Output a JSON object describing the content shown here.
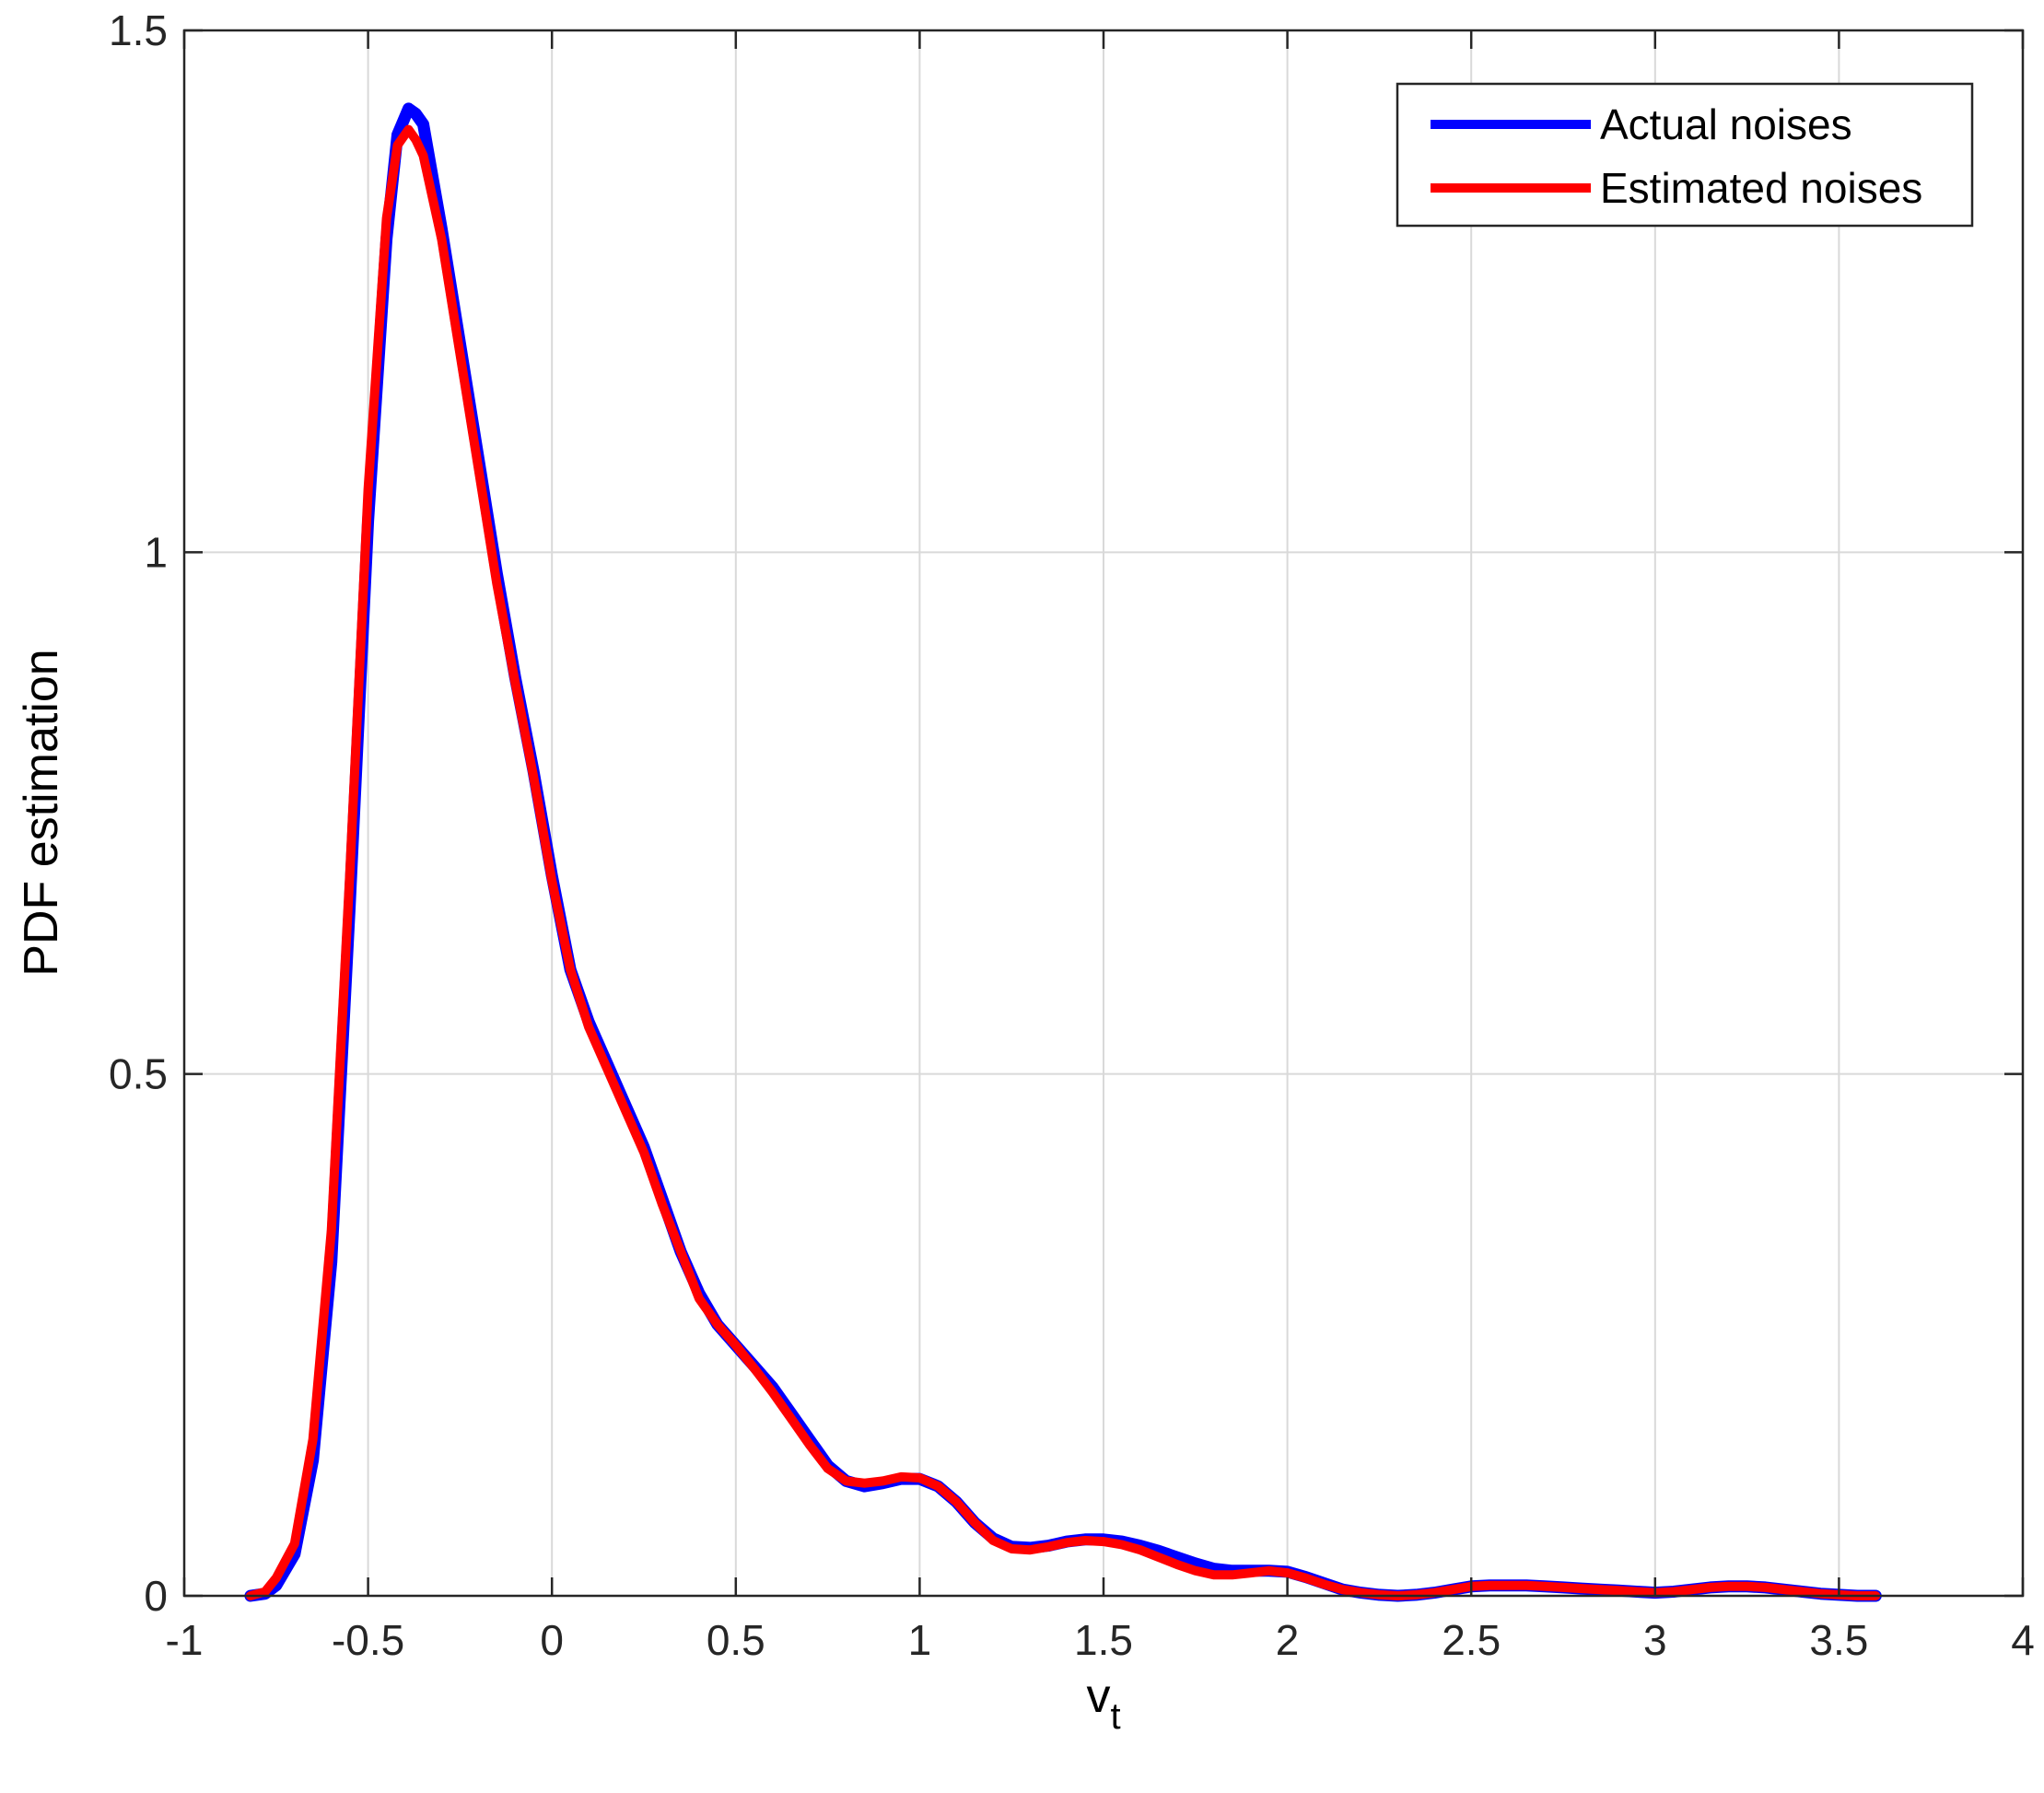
{
  "chart_data": {
    "type": "line",
    "title": "",
    "xlabel": "v",
    "xlabel_subscript": "t",
    "ylabel": "PDF estimation",
    "xlim": [
      -1,
      4
    ],
    "ylim": [
      0,
      1.5
    ],
    "xticks": [
      -1,
      -0.5,
      0,
      0.5,
      1,
      1.5,
      2,
      2.5,
      3,
      3.5,
      4
    ],
    "xtick_labels": [
      "-1",
      "-0.5",
      "0",
      "0.5",
      "1",
      "1.5",
      "2",
      "2.5",
      "3",
      "3.5",
      "4"
    ],
    "yticks": [
      0,
      0.5,
      1,
      1.5
    ],
    "ytick_labels": [
      "0",
      "0.5",
      "1",
      "1.5"
    ],
    "grid": true,
    "legend_position": "top-right",
    "series": [
      {
        "name": "Actual noises",
        "color": "#0000ff",
        "x": [
          -0.82,
          -0.78,
          -0.75,
          -0.7,
          -0.65,
          -0.6,
          -0.55,
          -0.5,
          -0.45,
          -0.42,
          -0.39,
          -0.37,
          -0.35,
          -0.3,
          -0.25,
          -0.2,
          -0.15,
          -0.1,
          -0.05,
          0,
          0.05,
          0.1,
          0.15,
          0.2,
          0.25,
          0.3,
          0.35,
          0.4,
          0.45,
          0.5,
          0.55,
          0.6,
          0.65,
          0.7,
          0.75,
          0.8,
          0.85,
          0.9,
          0.95,
          1,
          1.05,
          1.1,
          1.15,
          1.2,
          1.25,
          1.3,
          1.35,
          1.4,
          1.45,
          1.5,
          1.55,
          1.6,
          1.65,
          1.7,
          1.75,
          1.8,
          1.85,
          1.9,
          1.95,
          2,
          2.05,
          2.1,
          2.15,
          2.2,
          2.25,
          2.3,
          2.35,
          2.4,
          2.45,
          2.5,
          2.55,
          2.6,
          2.65,
          2.7,
          2.75,
          2.8,
          2.85,
          2.9,
          2.95,
          3,
          3.05,
          3.1,
          3.15,
          3.2,
          3.25,
          3.3,
          3.35,
          3.4,
          3.45,
          3.5,
          3.55,
          3.6
        ],
        "y": [
          0.0,
          0.002,
          0.01,
          0.04,
          0.13,
          0.32,
          0.66,
          1.03,
          1.3,
          1.4,
          1.425,
          1.42,
          1.41,
          1.31,
          1.2,
          1.09,
          0.98,
          0.88,
          0.79,
          0.69,
          0.6,
          0.55,
          0.51,
          0.47,
          0.43,
          0.38,
          0.33,
          0.29,
          0.26,
          0.24,
          0.22,
          0.2,
          0.175,
          0.15,
          0.125,
          0.11,
          0.105,
          0.108,
          0.112,
          0.112,
          0.105,
          0.09,
          0.07,
          0.055,
          0.047,
          0.046,
          0.048,
          0.052,
          0.054,
          0.054,
          0.052,
          0.048,
          0.043,
          0.037,
          0.031,
          0.026,
          0.024,
          0.024,
          0.024,
          0.023,
          0.018,
          0.012,
          0.006,
          0.003,
          0.001,
          0.0,
          0.001,
          0.003,
          0.006,
          0.009,
          0.01,
          0.01,
          0.01,
          0.009,
          0.008,
          0.007,
          0.006,
          0.005,
          0.004,
          0.003,
          0.004,
          0.006,
          0.008,
          0.009,
          0.009,
          0.008,
          0.006,
          0.004,
          0.002,
          0.001,
          0.0,
          0.0
        ]
      },
      {
        "name": "Estimated noises",
        "color": "#ff0000",
        "x": [
          -0.82,
          -0.78,
          -0.75,
          -0.7,
          -0.65,
          -0.6,
          -0.55,
          -0.5,
          -0.45,
          -0.42,
          -0.39,
          -0.37,
          -0.35,
          -0.3,
          -0.25,
          -0.2,
          -0.15,
          -0.1,
          -0.05,
          0,
          0.05,
          0.1,
          0.15,
          0.2,
          0.25,
          0.3,
          0.35,
          0.4,
          0.45,
          0.5,
          0.55,
          0.6,
          0.65,
          0.7,
          0.75,
          0.8,
          0.85,
          0.9,
          0.95,
          1,
          1.05,
          1.1,
          1.15,
          1.2,
          1.25,
          1.3,
          1.35,
          1.4,
          1.45,
          1.5,
          1.55,
          1.6,
          1.65,
          1.7,
          1.75,
          1.8,
          1.85,
          1.9,
          1.95,
          2,
          2.05,
          2.1,
          2.15,
          2.2,
          2.25,
          2.3,
          2.35,
          2.4,
          2.45,
          2.5,
          2.55,
          2.6,
          2.65,
          2.7,
          2.75,
          2.8,
          2.85,
          2.9,
          2.95,
          3,
          3.05,
          3.1,
          3.15,
          3.2,
          3.25,
          3.3,
          3.35,
          3.4,
          3.45,
          3.5,
          3.55,
          3.6
        ],
        "y": [
          0.0,
          0.004,
          0.017,
          0.05,
          0.15,
          0.35,
          0.69,
          1.06,
          1.32,
          1.39,
          1.405,
          1.395,
          1.38,
          1.3,
          1.19,
          1.08,
          0.97,
          0.875,
          0.785,
          0.685,
          0.6,
          0.545,
          0.505,
          0.465,
          0.425,
          0.375,
          0.33,
          0.285,
          0.26,
          0.24,
          0.218,
          0.195,
          0.17,
          0.145,
          0.122,
          0.11,
          0.108,
          0.11,
          0.114,
          0.113,
          0.105,
          0.09,
          0.07,
          0.053,
          0.045,
          0.044,
          0.047,
          0.051,
          0.053,
          0.052,
          0.049,
          0.044,
          0.037,
          0.03,
          0.024,
          0.02,
          0.02,
          0.022,
          0.024,
          0.022,
          0.017,
          0.011,
          0.006,
          0.003,
          0.001,
          0.0,
          0.001,
          0.003,
          0.006,
          0.009,
          0.01,
          0.01,
          0.01,
          0.009,
          0.008,
          0.007,
          0.006,
          0.005,
          0.004,
          0.003,
          0.004,
          0.006,
          0.008,
          0.009,
          0.009,
          0.008,
          0.006,
          0.004,
          0.002,
          0.001,
          0.0,
          0.0
        ]
      }
    ]
  }
}
